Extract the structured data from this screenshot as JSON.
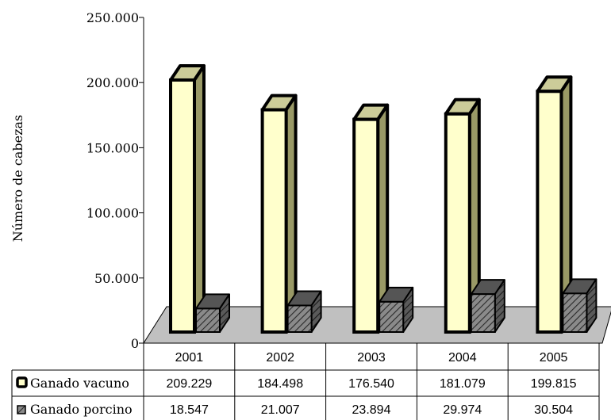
{
  "chart_data": {
    "type": "bar",
    "title": "",
    "ylabel": "Número de cabezas",
    "xlabel": "",
    "ylim": [
      0,
      250000
    ],
    "yticks": [
      0,
      50000,
      100000,
      150000,
      200000,
      250000
    ],
    "ytick_labels": [
      "0",
      "50.000",
      "100.000",
      "150.000",
      "200.000",
      "250.000"
    ],
    "categories": [
      "2001",
      "2002",
      "2003",
      "2004",
      "2005"
    ],
    "series": [
      {
        "name": "Ganado vacuno",
        "values": [
          209229,
          184498,
          176540,
          181079,
          199815
        ],
        "value_labels": [
          "209.229",
          "184.498",
          "176.540",
          "181.079",
          "199.815"
        ],
        "front_color": "#ffffcc",
        "top_color": "#cccc99",
        "side_color": "#999966",
        "pattern": "solid"
      },
      {
        "name": "Ganado porcino",
        "values": [
          18547,
          21007,
          23894,
          29974,
          30504
        ],
        "value_labels": [
          "18.547",
          "21.007",
          "23.894",
          "29.974",
          "30.504"
        ],
        "front_color": "#777777",
        "top_color": "#555555",
        "side_color": "#444444",
        "pattern": "hatched"
      }
    ],
    "floor_color": "#c0c0c0",
    "legend": "data-table",
    "grid": false,
    "style": "3d-column"
  }
}
